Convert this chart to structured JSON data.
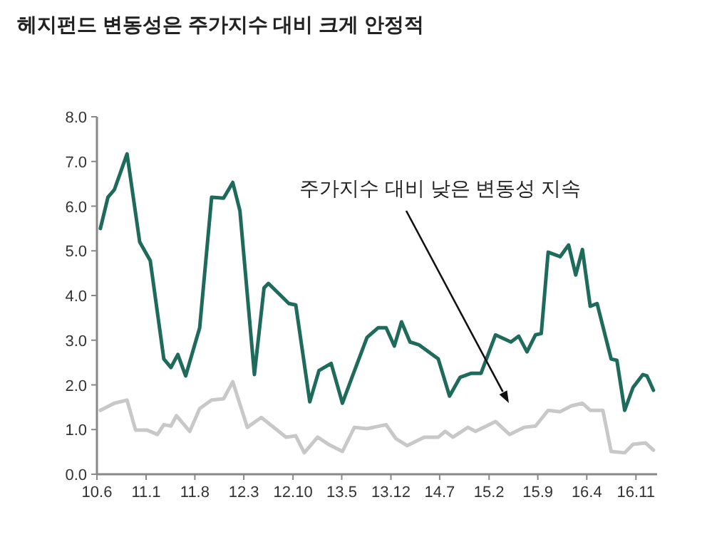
{
  "chart_data": {
    "type": "line",
    "title": "헤지펀드 변동성은 주가지수 대비 크게 안정적",
    "xlim": [
      "2010-06-01",
      "2017-02-01"
    ],
    "xticks": [
      {
        "value": "2010-06",
        "label": "10.6"
      },
      {
        "value": "2011-01",
        "label": "11.1"
      },
      {
        "value": "2011-08",
        "label": "11.8"
      },
      {
        "value": "2012-03",
        "label": "12.3"
      },
      {
        "value": "2012-10",
        "label": "12.10"
      },
      {
        "value": "2013-05",
        "label": "13.5"
      },
      {
        "value": "2013-12",
        "label": "13.12"
      },
      {
        "value": "2014-07",
        "label": "14.7"
      },
      {
        "value": "2015-02",
        "label": "15.2"
      },
      {
        "value": "2015-09",
        "label": "15.9"
      },
      {
        "value": "2016-04",
        "label": "16.4"
      },
      {
        "value": "2016-11",
        "label": "16.11"
      }
    ],
    "ylim": [
      0,
      8
    ],
    "yticks": [
      {
        "value": 0,
        "label": "0.0"
      },
      {
        "value": 1,
        "label": "1.0"
      },
      {
        "value": 2,
        "label": "2.0"
      },
      {
        "value": 3,
        "label": "3.0"
      },
      {
        "value": 4,
        "label": "4.0"
      },
      {
        "value": 5,
        "label": "5.0"
      },
      {
        "value": 6,
        "label": "6.0"
      },
      {
        "value": 7,
        "label": "7.0"
      },
      {
        "value": 8,
        "label": "8.0"
      }
    ],
    "grid": false,
    "series": [
      {
        "color": "#1e6b5c",
        "x": [
          "2010-06-16",
          "2010-07-19",
          "2010-08-16",
          "2010-10-10",
          "2010-12-04",
          "2011-01-19",
          "2011-03-19",
          "2011-04-19",
          "2011-05-19",
          "2011-06-22",
          "2011-08-22",
          "2011-10-13",
          "2011-12-04",
          "2012-01-13",
          "2012-02-13",
          "2012-04-16",
          "2012-05-28",
          "2012-06-16",
          "2012-09-13",
          "2012-10-13",
          "2012-12-13",
          "2013-01-22",
          "2013-03-16",
          "2013-05-04",
          "2013-06-19",
          "2013-08-19",
          "2013-10-07",
          "2013-11-10",
          "2013-12-16",
          "2014-01-16",
          "2014-02-22",
          "2014-04-01",
          "2014-06-25",
          "2014-08-13",
          "2014-09-28",
          "2014-11-16",
          "2014-12-28",
          "2015-03-01",
          "2015-05-07",
          "2015-06-10",
          "2015-07-16",
          "2015-08-22",
          "2015-09-16",
          "2015-10-16",
          "2015-12-07",
          "2016-01-13",
          "2016-02-13",
          "2016-03-13",
          "2016-04-16",
          "2016-05-16",
          "2016-07-16",
          "2016-08-10",
          "2016-09-13",
          "2016-10-19",
          "2016-12-01",
          "2016-12-19",
          "2017-01-16"
        ],
        "values": [
          5.5,
          6.2,
          6.37,
          7.17,
          5.2,
          4.78,
          2.58,
          2.39,
          2.68,
          2.2,
          3.28,
          6.2,
          6.18,
          6.53,
          5.9,
          2.23,
          4.17,
          4.27,
          3.82,
          3.79,
          1.62,
          2.32,
          2.48,
          1.59,
          2.23,
          3.06,
          3.28,
          3.28,
          2.87,
          3.41,
          2.96,
          2.9,
          2.58,
          1.75,
          2.17,
          2.26,
          2.26,
          3.12,
          2.96,
          3.09,
          2.74,
          3.12,
          3.15,
          4.97,
          4.87,
          5.13,
          4.46,
          5.03,
          3.76,
          3.82,
          2.58,
          2.55,
          1.43,
          1.94,
          2.23,
          2.2,
          1.88
        ]
      },
      {
        "color": "#c8c8c8",
        "x": [
          "2010-06-16",
          "2010-08-16",
          "2010-10-10",
          "2010-11-16",
          "2011-01-04",
          "2011-02-19",
          "2011-03-19",
          "2011-04-19",
          "2011-05-13",
          "2011-07-10",
          "2011-08-22",
          "2011-10-13",
          "2011-12-04",
          "2012-01-13",
          "2012-03-16",
          "2012-05-16",
          "2012-09-01",
          "2012-10-13",
          "2012-11-19",
          "2013-01-16",
          "2013-03-04",
          "2013-05-04",
          "2013-06-25",
          "2013-08-19",
          "2013-11-10",
          "2013-12-22",
          "2014-02-10",
          "2014-04-25",
          "2014-06-25",
          "2014-07-25",
          "2014-08-28",
          "2014-11-01",
          "2014-12-04",
          "2015-03-01",
          "2015-05-01",
          "2015-07-04",
          "2015-08-22",
          "2015-10-16",
          "2015-12-07",
          "2016-01-25",
          "2016-03-13",
          "2016-04-16",
          "2016-06-10",
          "2016-07-16",
          "2016-09-13",
          "2016-10-19",
          "2016-12-13",
          "2017-01-16"
        ],
        "values": [
          1.43,
          1.59,
          1.66,
          0.99,
          0.99,
          0.89,
          1.11,
          1.08,
          1.31,
          0.96,
          1.47,
          1.66,
          1.69,
          2.07,
          1.05,
          1.27,
          0.83,
          0.86,
          0.48,
          0.83,
          0.67,
          0.51,
          1.05,
          1.02,
          1.11,
          0.8,
          0.64,
          0.83,
          0.83,
          0.96,
          0.83,
          1.05,
          0.96,
          1.18,
          0.89,
          1.05,
          1.08,
          1.43,
          1.4,
          1.53,
          1.59,
          1.43,
          1.43,
          0.51,
          0.48,
          0.67,
          0.7,
          0.54
        ]
      }
    ],
    "annotations": [
      "주가지수 대비 낮은 변동성 지속"
    ]
  }
}
